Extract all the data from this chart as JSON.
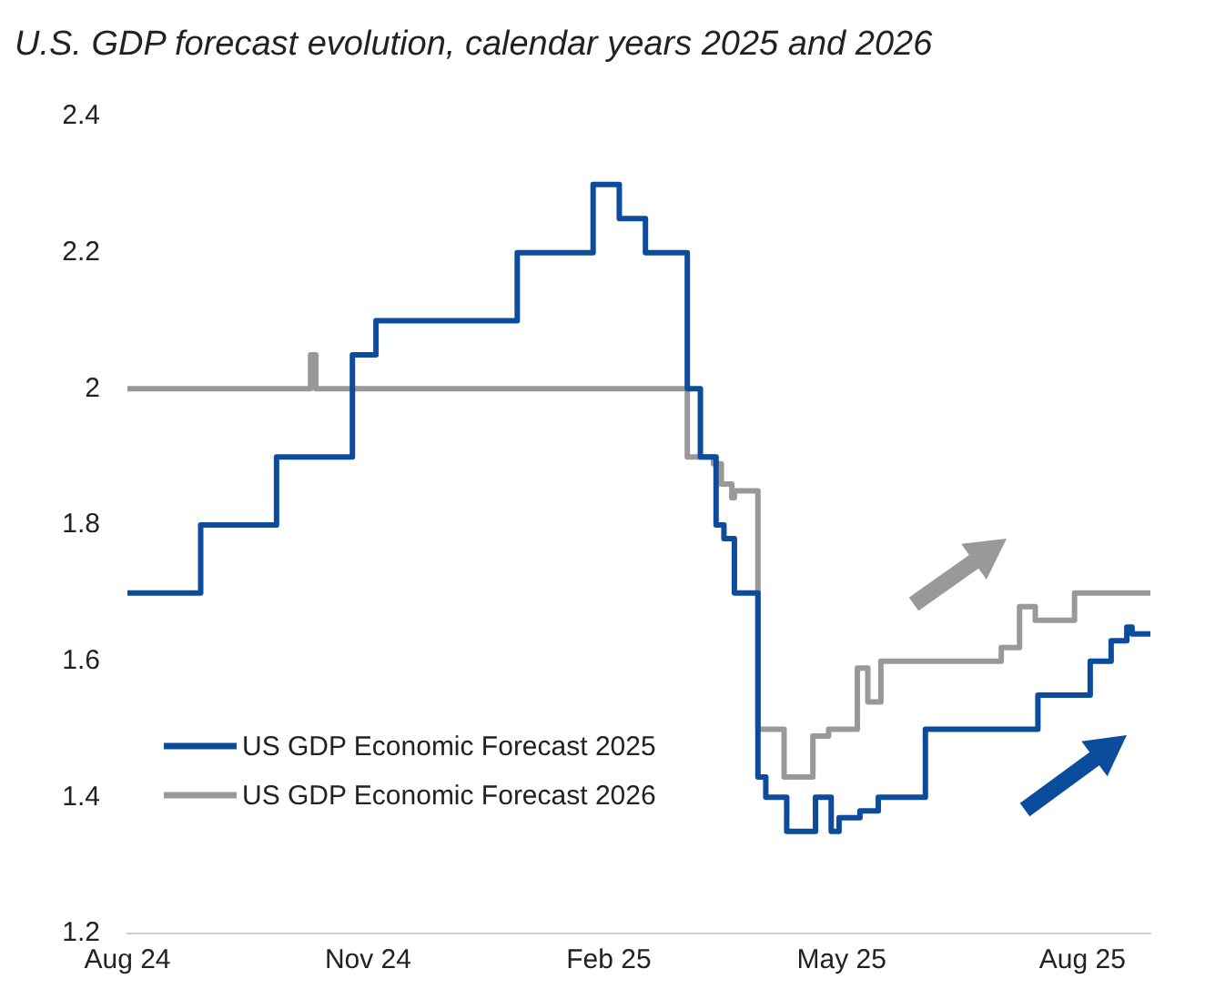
{
  "chart_data": {
    "type": "step",
    "title": "U.S. GDP forecast evolution, calendar years 2025 and 2026",
    "x": [
      "2024-08-01",
      "2024-08-29",
      "2024-09-27",
      "2024-10-26",
      "2024-11-04",
      "2024-12-28",
      "2025-01-26",
      "2025-02-05",
      "2025-02-15",
      "2025-03-03",
      "2025-03-08",
      "2025-03-14",
      "2025-03-17",
      "2025-03-21",
      "2025-03-30",
      "2025-04-02",
      "2025-04-10",
      "2025-04-21",
      "2025-04-27",
      "2025-04-30",
      "2025-05-08",
      "2025-05-15",
      "2025-06-02",
      "2025-07-15",
      "2025-08-04",
      "2025-08-12",
      "2025-08-18",
      "2025-08-20",
      "2025-08-27"
    ],
    "series": [
      {
        "name": "US GDP Economic Forecast 2025",
        "color": "#0b4c9c",
        "values": [
          1.7,
          1.8,
          1.9,
          2.05,
          2.1,
          2.2,
          2.3,
          2.25,
          2.2,
          2.0,
          1.9,
          1.8,
          1.78,
          1.7,
          1.43,
          1.4,
          1.35,
          1.4,
          1.35,
          1.37,
          1.38,
          1.4,
          1.5,
          1.55,
          1.6,
          1.63,
          1.65,
          1.64,
          1.64
        ]
      },
      {
        "name": "US GDP Economic Forecast 2026",
        "color": "#999999",
        "x": [
          "2024-08-01",
          "2024-10-10",
          "2024-10-12",
          "2025-03-03",
          "2025-03-13",
          "2025-03-16",
          "2025-03-20",
          "2025-03-21",
          "2025-03-30",
          "2025-04-09",
          "2025-04-20",
          "2025-04-26",
          "2025-05-04",
          "2025-05-07",
          "2025-05-11",
          "2025-05-16",
          "2025-07-01",
          "2025-07-08",
          "2025-07-14",
          "2025-07-29",
          "2025-08-27"
        ],
        "values": [
          2.0,
          2.05,
          2.0,
          1.9,
          1.89,
          1.86,
          1.84,
          1.85,
          1.5,
          1.43,
          1.49,
          1.5,
          1.5,
          1.59,
          1.54,
          1.6,
          1.62,
          1.68,
          1.66,
          1.7,
          1.7
        ]
      }
    ],
    "xticks": [
      {
        "value": "2024-08-01",
        "label": "Aug 24"
      },
      {
        "value": "2024-11-01",
        "label": "Nov 24"
      },
      {
        "value": "2025-02-01",
        "label": "Feb 25"
      },
      {
        "value": "2025-05-01",
        "label": "May 25"
      },
      {
        "value": "2025-08-01",
        "label": "Aug 25"
      }
    ],
    "xlim": [
      "2024-08-01",
      "2025-08-27"
    ],
    "ylim": [
      1.2,
      2.4
    ],
    "yticks": [
      1.2,
      1.4,
      1.6,
      1.8,
      2,
      2.2,
      2.4
    ],
    "grid": false,
    "legend": "bottom left",
    "marker": "none",
    "line_style": "solid"
  }
}
